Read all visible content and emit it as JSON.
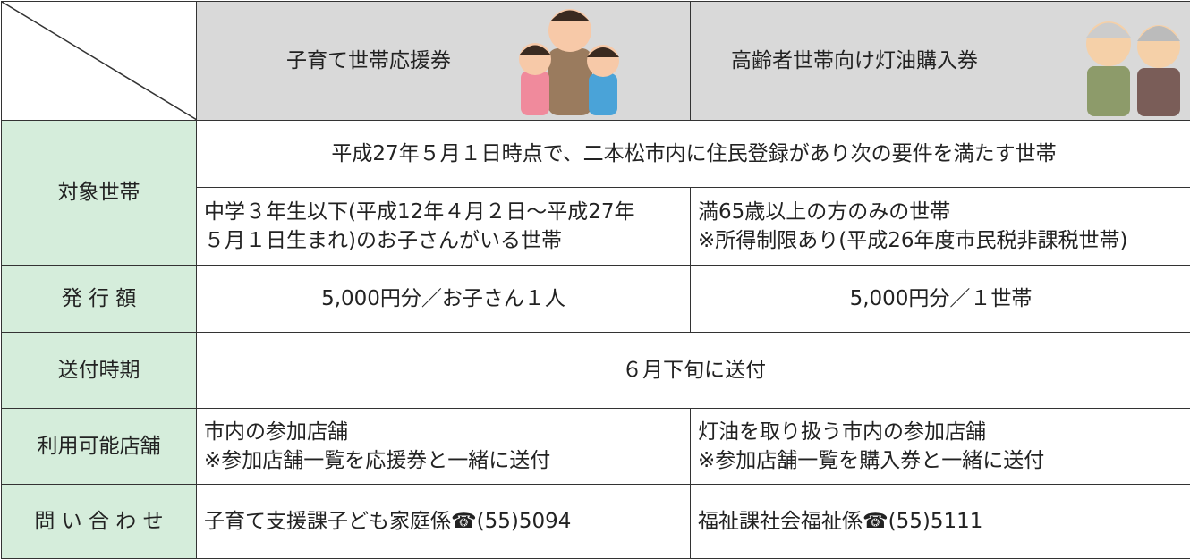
{
  "header": {
    "columns": [
      "子育て世帯応援券",
      "高齢者世帯向け灯油購入券"
    ]
  },
  "rows": [
    {
      "label": "対象世帯",
      "common": "平成27年５月１日時点で、二本松市内に住民登録があり次の要件を満たす世帯",
      "cells": [
        [
          "中学３年生以下(平成12年４月２日～平成27年",
          "５月１日生まれ)のお子さんがいる世帯"
        ],
        [
          "満65歳以上の方のみの世帯",
          "※所得制限あり(平成26年度市民税非課税世帯)"
        ]
      ]
    },
    {
      "label": "発 行 額",
      "cells": [
        [
          "5,000円分／お子さん１人"
        ],
        [
          "5,000円分／１世帯"
        ]
      ]
    },
    {
      "label": "送付時期",
      "common": "６月下旬に送付"
    },
    {
      "label": "利用可能店舗",
      "cells": [
        [
          "市内の参加店舗",
          "※参加店舗一覧を応援券と一緒に送付"
        ],
        [
          "灯油を取り扱う市内の参加店舗",
          "※参加店舗一覧を購入券と一緒に送付"
        ]
      ]
    },
    {
      "label": "問 い 合 わ せ",
      "cells": [
        [
          "子育て支援課子ども家庭係☎(55)5094"
        ],
        [
          "福祉課社会福祉係☎(55)5111"
        ]
      ]
    }
  ]
}
